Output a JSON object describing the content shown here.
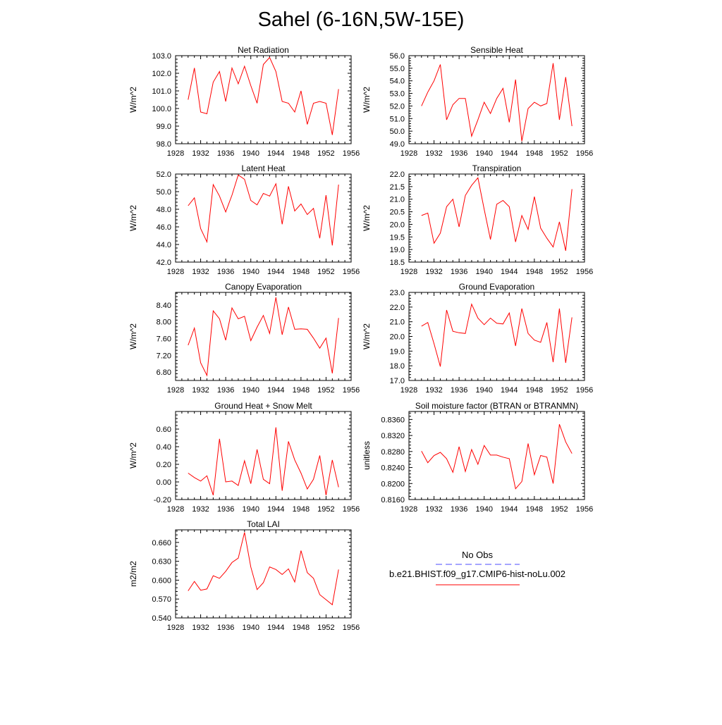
{
  "page": {
    "title": "Sahel (6-16N,5W-15E)"
  },
  "legend": {
    "entries": [
      {
        "label": "No Obs",
        "color": "#4b4bff",
        "style": "dashed"
      },
      {
        "label": "b.e21.BHIST.f09_g17.CMIP6-hist-noLu.002",
        "color": "#ff0000",
        "style": "solid"
      }
    ]
  },
  "chart_data": [
    {
      "type": "line",
      "title": "Net Radiation",
      "ylabel": "W/m^2",
      "xlim": [
        1928,
        1956
      ],
      "ylim": [
        98.0,
        103.0
      ],
      "xticks": [
        1928,
        1932,
        1936,
        1940,
        1944,
        1948,
        1952,
        1956
      ],
      "yticks": [
        98.0,
        99.0,
        100.0,
        101.0,
        102.0,
        103.0
      ],
      "ytick_labels": [
        "98.0",
        "99.0",
        "100.0",
        "101.0",
        "102.0",
        "103.0"
      ],
      "line_color": "#ff0000",
      "series": [
        {
          "x": [
            1930,
            1931,
            1932,
            1933,
            1934,
            1935,
            1936,
            1937,
            1938,
            1939,
            1940,
            1941,
            1942,
            1943,
            1944,
            1945,
            1946,
            1947,
            1948,
            1949,
            1950,
            1951,
            1952,
            1953,
            1954
          ],
          "values": [
            100.5,
            102.3,
            99.8,
            99.7,
            101.5,
            102.1,
            100.4,
            102.3,
            101.4,
            102.4,
            101.3,
            100.3,
            102.5,
            102.9,
            102.1,
            100.4,
            100.3,
            99.8,
            101.0,
            99.1,
            100.3,
            100.4,
            100.3,
            98.5,
            101.1
          ]
        }
      ]
    },
    {
      "type": "line",
      "title": "Sensible Heat",
      "ylabel": "W/m^2",
      "xlim": [
        1928,
        1956
      ],
      "ylim": [
        49.0,
        56.0
      ],
      "xticks": [
        1928,
        1932,
        1936,
        1940,
        1944,
        1948,
        1952,
        1956
      ],
      "yticks": [
        49.0,
        50.0,
        51.0,
        52.0,
        53.0,
        54.0,
        55.0,
        56.0
      ],
      "ytick_labels": [
        "49.0",
        "50.0",
        "51.0",
        "52.0",
        "53.0",
        "54.0",
        "55.0",
        "56.0"
      ],
      "line_color": "#ff0000",
      "series": [
        {
          "x": [
            1930,
            1931,
            1932,
            1933,
            1934,
            1935,
            1936,
            1937,
            1938,
            1939,
            1940,
            1941,
            1942,
            1943,
            1944,
            1945,
            1946,
            1947,
            1948,
            1949,
            1950,
            1951,
            1952,
            1953,
            1954
          ],
          "values": [
            52.0,
            53.1,
            54.0,
            55.3,
            50.9,
            52.1,
            52.6,
            52.6,
            49.6,
            50.9,
            52.3,
            51.4,
            52.6,
            53.4,
            50.7,
            54.1,
            49.2,
            51.8,
            52.3,
            52.0,
            52.2,
            55.4,
            50.9,
            54.3,
            50.4
          ]
        }
      ]
    },
    {
      "type": "line",
      "title": "Latent Heat",
      "ylabel": "W/m^2",
      "xlim": [
        1928,
        1956
      ],
      "ylim": [
        42.0,
        52.0
      ],
      "xticks": [
        1928,
        1932,
        1936,
        1940,
        1944,
        1948,
        1952,
        1956
      ],
      "yticks": [
        42.0,
        44.0,
        46.0,
        48.0,
        50.0,
        52.0
      ],
      "ytick_labels": [
        "42.0",
        "44.0",
        "46.0",
        "48.0",
        "50.0",
        "52.0"
      ],
      "line_color": "#ff0000",
      "series": [
        {
          "x": [
            1930,
            1931,
            1932,
            1933,
            1934,
            1935,
            1936,
            1937,
            1938,
            1939,
            1940,
            1941,
            1942,
            1943,
            1944,
            1945,
            1946,
            1947,
            1948,
            1949,
            1950,
            1951,
            1952,
            1953,
            1954
          ],
          "values": [
            48.4,
            49.3,
            45.8,
            44.3,
            50.8,
            49.5,
            47.7,
            49.6,
            51.9,
            51.4,
            49.0,
            48.5,
            49.8,
            49.5,
            50.9,
            46.3,
            50.6,
            47.8,
            48.6,
            47.4,
            48.1,
            44.7,
            49.6,
            43.9,
            50.8
          ]
        }
      ]
    },
    {
      "type": "line",
      "title": "Transpiration",
      "ylabel": "W/m^2",
      "xlim": [
        1928,
        1956
      ],
      "ylim": [
        18.5,
        22.0
      ],
      "xticks": [
        1928,
        1932,
        1936,
        1940,
        1944,
        1948,
        1952,
        1956
      ],
      "yticks": [
        18.5,
        19.0,
        19.5,
        20.0,
        20.5,
        21.0,
        21.5,
        22.0
      ],
      "ytick_labels": [
        "18.5",
        "19.0",
        "19.5",
        "20.0",
        "20.5",
        "21.0",
        "21.5",
        "22.0"
      ],
      "line_color": "#ff0000",
      "series": [
        {
          "x": [
            1930,
            1931,
            1932,
            1933,
            1934,
            1935,
            1936,
            1937,
            1938,
            1939,
            1940,
            1941,
            1942,
            1943,
            1944,
            1945,
            1946,
            1947,
            1948,
            1949,
            1950,
            1951,
            1952,
            1953,
            1954
          ],
          "values": [
            20.35,
            20.45,
            19.25,
            19.65,
            20.7,
            21.0,
            19.9,
            21.15,
            21.55,
            21.85,
            20.6,
            19.4,
            20.8,
            20.95,
            20.7,
            19.3,
            20.35,
            19.8,
            21.1,
            19.85,
            19.45,
            19.1,
            20.1,
            18.95,
            21.4
          ]
        }
      ]
    },
    {
      "type": "line",
      "title": "Canopy Evaporation",
      "ylabel": "W/m^2",
      "xlim": [
        1928,
        1956
      ],
      "ylim": [
        6.6,
        8.7
      ],
      "xticks": [
        1928,
        1932,
        1936,
        1940,
        1944,
        1948,
        1952,
        1956
      ],
      "yticks": [
        6.8,
        7.2,
        7.6,
        8.0,
        8.4
      ],
      "ytick_labels": [
        "6.80",
        "7.20",
        "7.60",
        "8.00",
        "8.40"
      ],
      "line_color": "#ff0000",
      "series": [
        {
          "x": [
            1930,
            1931,
            1932,
            1933,
            1934,
            1935,
            1936,
            1937,
            1938,
            1939,
            1940,
            1941,
            1942,
            1943,
            1944,
            1945,
            1946,
            1947,
            1948,
            1949,
            1950,
            1951,
            1952,
            1953,
            1954
          ],
          "values": [
            7.44,
            7.85,
            7.02,
            6.72,
            8.26,
            8.07,
            7.56,
            8.33,
            8.07,
            8.13,
            7.55,
            7.87,
            8.15,
            7.72,
            8.58,
            7.69,
            8.35,
            7.82,
            7.83,
            7.82,
            7.61,
            7.37,
            7.61,
            6.77,
            8.09
          ]
        }
      ]
    },
    {
      "type": "line",
      "title": "Ground Evaporation",
      "ylabel": "W/m^2",
      "xlim": [
        1928,
        1956
      ],
      "ylim": [
        17.0,
        23.0
      ],
      "xticks": [
        1928,
        1932,
        1936,
        1940,
        1944,
        1948,
        1952,
        1956
      ],
      "yticks": [
        17.0,
        18.0,
        19.0,
        20.0,
        21.0,
        22.0,
        23.0
      ],
      "ytick_labels": [
        "17.0",
        "18.0",
        "19.0",
        "20.0",
        "21.0",
        "22.0",
        "23.0"
      ],
      "line_color": "#ff0000",
      "series": [
        {
          "x": [
            1930,
            1931,
            1932,
            1933,
            1934,
            1935,
            1936,
            1937,
            1938,
            1939,
            1940,
            1941,
            1942,
            1943,
            1944,
            1945,
            1946,
            1947,
            1948,
            1949,
            1950,
            1951,
            1952,
            1953,
            1954
          ],
          "values": [
            20.7,
            20.95,
            19.5,
            17.95,
            21.8,
            20.35,
            20.25,
            20.2,
            22.2,
            21.25,
            20.8,
            21.25,
            20.9,
            20.85,
            21.6,
            19.35,
            21.9,
            20.2,
            19.75,
            19.6,
            20.95,
            18.25,
            21.9,
            18.2,
            21.3
          ]
        }
      ]
    },
    {
      "type": "line",
      "title": "Ground Heat + Snow Melt",
      "ylabel": "W/m^2",
      "xlim": [
        1928,
        1956
      ],
      "ylim": [
        -0.2,
        0.8
      ],
      "xticks": [
        1928,
        1932,
        1936,
        1940,
        1944,
        1948,
        1952,
        1956
      ],
      "yticks": [
        -0.2,
        0.0,
        0.2,
        0.4,
        0.6
      ],
      "ytick_labels": [
        "-0.20",
        "0.00",
        "0.20",
        "0.40",
        "0.60"
      ],
      "line_color": "#ff0000",
      "series": [
        {
          "x": [
            1930,
            1931,
            1932,
            1933,
            1934,
            1935,
            1936,
            1937,
            1938,
            1939,
            1940,
            1941,
            1942,
            1943,
            1944,
            1945,
            1946,
            1947,
            1948,
            1949,
            1950,
            1951,
            1952,
            1953,
            1954
          ],
          "values": [
            0.1,
            0.05,
            0.01,
            0.07,
            -0.15,
            0.49,
            0.0,
            0.01,
            -0.04,
            0.24,
            -0.02,
            0.37,
            0.03,
            -0.02,
            0.62,
            -0.1,
            0.46,
            0.25,
            0.1,
            -0.08,
            0.03,
            0.3,
            -0.15,
            0.25,
            -0.06
          ]
        }
      ]
    },
    {
      "type": "line",
      "title": "Soil moisture factor (BTRAN or BTRANMN)",
      "ylabel": "unitless",
      "xlim": [
        1928,
        1956
      ],
      "ylim": [
        0.816,
        0.838
      ],
      "xticks": [
        1928,
        1932,
        1936,
        1940,
        1944,
        1948,
        1952,
        1956
      ],
      "yticks": [
        0.816,
        0.82,
        0.824,
        0.828,
        0.832,
        0.836
      ],
      "ytick_labels": [
        "0.8160",
        "0.8200",
        "0.8240",
        "0.8280",
        "0.8320",
        "0.8360"
      ],
      "line_color": "#ff0000",
      "series": [
        {
          "x": [
            1930,
            1931,
            1932,
            1933,
            1934,
            1935,
            1936,
            1937,
            1938,
            1939,
            1940,
            1941,
            1942,
            1943,
            1944,
            1945,
            1946,
            1947,
            1948,
            1949,
            1950,
            1951,
            1952,
            1953,
            1954
          ],
          "values": [
            0.8281,
            0.8252,
            0.827,
            0.8278,
            0.8262,
            0.8228,
            0.8292,
            0.823,
            0.8285,
            0.8248,
            0.8295,
            0.8271,
            0.8271,
            0.8266,
            0.8262,
            0.8187,
            0.8205,
            0.83,
            0.8222,
            0.827,
            0.8266,
            0.82,
            0.8348,
            0.8304,
            0.8275
          ]
        }
      ]
    },
    {
      "type": "line",
      "title": "Total LAI",
      "ylabel": "m2/m2",
      "xlim": [
        1928,
        1956
      ],
      "ylim": [
        0.54,
        0.68
      ],
      "xticks": [
        1928,
        1932,
        1936,
        1940,
        1944,
        1948,
        1952,
        1956
      ],
      "yticks": [
        0.54,
        0.57,
        0.6,
        0.63,
        0.66
      ],
      "ytick_labels": [
        "0.540",
        "0.570",
        "0.600",
        "0.630",
        "0.660"
      ],
      "line_color": "#ff0000",
      "series": [
        {
          "x": [
            1930,
            1931,
            1932,
            1933,
            1934,
            1935,
            1936,
            1937,
            1938,
            1939,
            1940,
            1941,
            1942,
            1943,
            1944,
            1945,
            1946,
            1947,
            1948,
            1949,
            1950,
            1951,
            1952,
            1953,
            1954
          ],
          "values": [
            0.583,
            0.598,
            0.584,
            0.586,
            0.607,
            0.603,
            0.614,
            0.628,
            0.635,
            0.676,
            0.621,
            0.585,
            0.596,
            0.621,
            0.617,
            0.609,
            0.618,
            0.597,
            0.647,
            0.612,
            0.603,
            0.577,
            0.569,
            0.561,
            0.617
          ]
        }
      ]
    }
  ]
}
